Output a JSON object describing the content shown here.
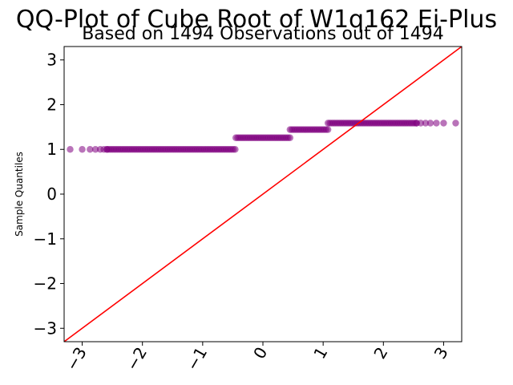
{
  "chart_data": {
    "type": "scatter",
    "title": "QQ-Plot of Cube Root of W1q162 Ei-Plus",
    "subtitle": "Based on 1494 Observations out of 1494",
    "xlabel": "",
    "ylabel": "Sample Quantiles",
    "xlim": [
      -3.3,
      3.3
    ],
    "ylim": [
      -3.3,
      3.3
    ],
    "xticks": [
      -3,
      -2,
      -1,
      0,
      1,
      2,
      3
    ],
    "xtick_labels": [
      "−3",
      "−2",
      "−1",
      "0",
      "1",
      "2",
      "3"
    ],
    "yticks": [
      -3,
      -2,
      -1,
      0,
      1,
      2,
      3
    ],
    "ytick_labels": [
      "−3",
      "−2",
      "−1",
      "0",
      "1",
      "2",
      "3"
    ],
    "grid": false,
    "marker_color": "#800080",
    "marker_opacity": 0.55,
    "reference_line": {
      "color": "#ff0000",
      "slope": 1,
      "intercept": 0
    },
    "groups": [
      {
        "y": 1.0,
        "x_from": -3.2,
        "x_to": -0.45,
        "points": [
          -3.2,
          -3.0,
          -2.87,
          -2.78,
          -2.7,
          -2.64,
          -2.59
        ]
      },
      {
        "y": 1.26,
        "x_from": -0.45,
        "x_to": 0.45
      },
      {
        "y": 1.442,
        "x_from": 0.45,
        "x_to": 1.08
      },
      {
        "y": 1.587,
        "x_from": 1.08,
        "x_to": 3.2,
        "points": [
          2.55,
          2.62,
          2.7,
          2.78,
          2.88,
          3.0,
          3.2
        ]
      }
    ]
  }
}
